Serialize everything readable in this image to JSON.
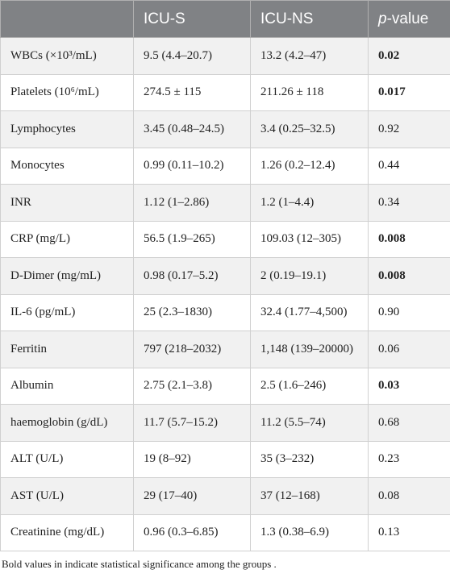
{
  "table": {
    "header": [
      {
        "text": "ICU-S"
      },
      {
        "text": "ICU-NS"
      },
      {
        "italic": "p",
        "text": "-value"
      }
    ],
    "rows": [
      {
        "cells": [
          "WBCs (×10³/mL)",
          "9.5 (4.4–20.7)",
          "13.2 (4.2–47)",
          "0.02"
        ],
        "bold": true
      },
      {
        "cells": [
          "Platelets (10⁶/mL)",
          "274.5 ± 115",
          "211.26 ± 118",
          "0.017"
        ],
        "bold": true
      },
      {
        "cells": [
          "Lymphocytes",
          "3.45 (0.48–24.5)",
          "3.4 (0.25–32.5)",
          "0.92"
        ],
        "bold": false
      },
      {
        "cells": [
          "Monocytes",
          "0.99 (0.11–10.2)",
          "1.26 (0.2–12.4)",
          "0.44"
        ],
        "bold": false
      },
      {
        "cells": [
          "INR",
          "1.12 (1–2.86)",
          "1.2 (1–4.4)",
          "0.34"
        ],
        "bold": false
      },
      {
        "cells": [
          "CRP (mg/L)",
          "56.5 (1.9–265)",
          "109.03 (12–305)",
          "0.008"
        ],
        "bold": true
      },
      {
        "cells": [
          "D-Dimer (mg/mL)",
          "0.98 (0.17–5.2)",
          "2 (0.19–19.1)",
          "0.008"
        ],
        "bold": true
      },
      {
        "cells": [
          "IL-6 (pg/mL)",
          "25 (2.3–1830)",
          "32.4 (1.77–4,500)",
          "0.90"
        ],
        "bold": false
      },
      {
        "cells": [
          "Ferritin",
          "797 (218–2032)",
          "1,148 (139–20000)",
          "0.06"
        ],
        "bold": false
      },
      {
        "cells": [
          "Albumin",
          "2.75 (2.1–3.8)",
          "2.5 (1.6–246)",
          "0.03"
        ],
        "bold": true
      },
      {
        "cells": [
          "haemoglobin (g/dL)",
          "11.7 (5.7–15.2)",
          "11.2 (5.5–74)",
          "0.68"
        ],
        "bold": false
      },
      {
        "cells": [
          "ALT (U/L)",
          "19 (8–92)",
          "35 (3–232)",
          "0.23"
        ],
        "bold": false
      },
      {
        "cells": [
          "AST (U/L)",
          "29 (17–40)",
          "37 (12–168)",
          "0.08"
        ],
        "bold": false
      },
      {
        "cells": [
          "Creatinine (mg/dL)",
          "0.96 (0.3–6.85)",
          "1.3 (0.38–6.9)",
          "0.13"
        ],
        "bold": false
      }
    ]
  },
  "footnote": "Bold values in indicate statistical significance among the groups ."
}
